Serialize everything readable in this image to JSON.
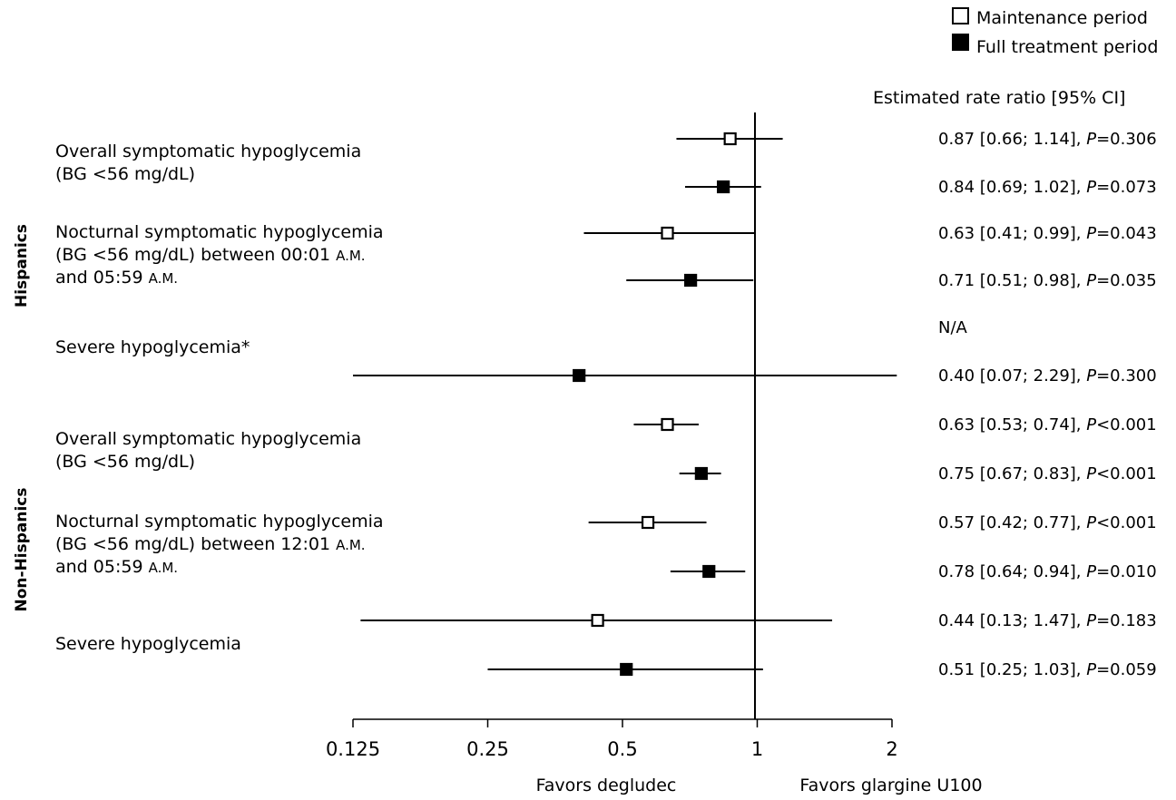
{
  "legend": {
    "maintenance": "Maintenance period",
    "full": "Full treatment period"
  },
  "ci_header": "Estimated rate ratio [95% CI]",
  "x_axis": {
    "ticks": [
      {
        "value": 0.125,
        "label": "0.125"
      },
      {
        "value": 0.25,
        "label": "0.25"
      },
      {
        "value": 0.5,
        "label": "0.5"
      },
      {
        "value": 1,
        "label": "1"
      },
      {
        "value": 2,
        "label": "2"
      }
    ],
    "left_caption": "Favors degludec",
    "right_caption": "Favors glargine U100"
  },
  "groups": [
    {
      "label": "Hispanics"
    },
    {
      "label": "Non-Hispanics"
    }
  ],
  "outcome_labels": [
    {
      "lines": [
        "Overall symptomatic hypoglycemia",
        "(BG <56 mg/dL)"
      ]
    },
    {
      "lines": [
        "Nocturnal symptomatic hypoglycemia",
        "(BG <56 mg/dL) between 00:01 A.M.",
        "and 05:59 A.M."
      ]
    },
    {
      "lines": [
        "Severe hypoglycemia*"
      ]
    },
    {
      "lines": [
        "Overall symptomatic hypoglycemia",
        "(BG <56 mg/dL)"
      ]
    },
    {
      "lines": [
        "Nocturnal symptomatic hypoglycemia",
        "(BG <56 mg/dL) between 12:01 A.M.",
        "and 05:59 A.M."
      ]
    },
    {
      "lines": [
        "Severe hypoglycemia"
      ]
    }
  ],
  "chart_data": {
    "type": "forest",
    "x_scale": "log2",
    "xlim": [
      0.125,
      2
    ],
    "reference_value": 1,
    "rows": [
      {
        "group": "Hispanics",
        "outcome": "Overall symptomatic hypoglycemia",
        "period": "Maintenance period",
        "estimate": 0.87,
        "ci_low": 0.66,
        "ci_high": 1.14,
        "ci_text": "0.87 [0.66; 1.14], ",
        "p_label": "P",
        "p_text": "=0.306"
      },
      {
        "group": "Hispanics",
        "outcome": "Overall symptomatic hypoglycemia",
        "period": "Full treatment period",
        "estimate": 0.84,
        "ci_low": 0.69,
        "ci_high": 1.02,
        "ci_text": "0.84 [0.69; 1.02], ",
        "p_label": "P",
        "p_text": "=0.073"
      },
      {
        "group": "Hispanics",
        "outcome": "Nocturnal symptomatic hypoglycemia",
        "period": "Maintenance period",
        "estimate": 0.63,
        "ci_low": 0.41,
        "ci_high": 0.99,
        "ci_text": "0.63 [0.41; 0.99], ",
        "p_label": "P",
        "p_text": "=0.043"
      },
      {
        "group": "Hispanics",
        "outcome": "Nocturnal symptomatic hypoglycemia",
        "period": "Full treatment period",
        "estimate": 0.71,
        "ci_low": 0.51,
        "ci_high": 0.98,
        "ci_text": "0.71 [0.51; 0.98], ",
        "p_label": "P",
        "p_text": "=0.035"
      },
      {
        "group": "Hispanics",
        "outcome": "Severe hypoglycemia*",
        "period": "Maintenance period",
        "estimate": null,
        "ci_low": null,
        "ci_high": null,
        "ci_text": "N/A",
        "p_label": "",
        "p_text": ""
      },
      {
        "group": "Hispanics",
        "outcome": "Severe hypoglycemia*",
        "period": "Full treatment period",
        "estimate": 0.4,
        "ci_low": 0.07,
        "ci_high": 2.29,
        "ci_text": "0.40 [0.07; 2.29], ",
        "p_label": "P",
        "p_text": "=0.300"
      },
      {
        "group": "Non-Hispanics",
        "outcome": "Overall symptomatic hypoglycemia",
        "period": "Maintenance period",
        "estimate": 0.63,
        "ci_low": 0.53,
        "ci_high": 0.74,
        "ci_text": "0.63 [0.53; 0.74], ",
        "p_label": "P",
        "p_text": "<0.001"
      },
      {
        "group": "Non-Hispanics",
        "outcome": "Overall symptomatic hypoglycemia",
        "period": "Full treatment period",
        "estimate": 0.75,
        "ci_low": 0.67,
        "ci_high": 0.83,
        "ci_text": "0.75 [0.67; 0.83], ",
        "p_label": "P",
        "p_text": "<0.001"
      },
      {
        "group": "Non-Hispanics",
        "outcome": "Nocturnal symptomatic hypoglycemia",
        "period": "Maintenance period",
        "estimate": 0.57,
        "ci_low": 0.42,
        "ci_high": 0.77,
        "ci_text": "0.57 [0.42; 0.77], ",
        "p_label": "P",
        "p_text": "<0.001"
      },
      {
        "group": "Non-Hispanics",
        "outcome": "Nocturnal symptomatic hypoglycemia",
        "period": "Full treatment period",
        "estimate": 0.78,
        "ci_low": 0.64,
        "ci_high": 0.94,
        "ci_text": "0.78 [0.64; 0.94], ",
        "p_label": "P",
        "p_text": "=0.010"
      },
      {
        "group": "Non-Hispanics",
        "outcome": "Severe hypoglycemia",
        "period": "Maintenance period",
        "estimate": 0.44,
        "ci_low": 0.13,
        "ci_high": 1.47,
        "ci_text": "0.44 [0.13; 1.47], ",
        "p_label": "P",
        "p_text": "=0.183"
      },
      {
        "group": "Non-Hispanics",
        "outcome": "Severe hypoglycemia",
        "period": "Full treatment period",
        "estimate": 0.51,
        "ci_low": 0.25,
        "ci_high": 1.03,
        "ci_text": "0.51 [0.25; 1.03], ",
        "p_label": "P",
        "p_text": "=0.059"
      }
    ],
    "marker_colors": {
      "maintenance": "#ffffff",
      "full": "#000000"
    }
  }
}
